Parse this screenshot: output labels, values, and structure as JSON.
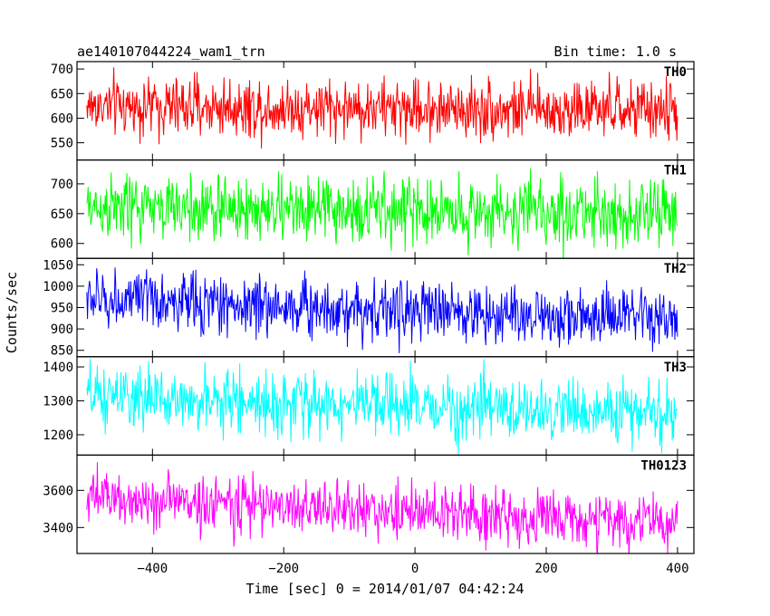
{
  "header": {
    "title": "ae140107044224_wam1_trn",
    "bin_time": "Bin time: 1.0 s"
  },
  "chart_data": {
    "type": "line",
    "title": "ae140107044224_wam1_trn",
    "subtitle": "Bin time: 1.0 s",
    "xlabel": "Time [sec] 0 = 2014/01/07 04:42:24",
    "ylabel": "Counts/sec",
    "xlim": [
      -515,
      425
    ],
    "x_range": [
      -500,
      400
    ],
    "x_ticks": [
      -400,
      -200,
      0,
      200,
      400
    ],
    "x_tick_labels": [
      "−400",
      "−200",
      "0",
      "200",
      "400"
    ],
    "grid": false,
    "panels": [
      {
        "name": "TH0",
        "color": "#ff0000",
        "ylim": [
          515,
          715
        ],
        "ticks": [
          550,
          600,
          650,
          700
        ],
        "tick_labels": [
          "550",
          "600",
          "650",
          "700"
        ],
        "mean_start": 625,
        "mean_end": 615,
        "spread": 30
      },
      {
        "name": "TH1",
        "color": "#00ff00",
        "ylim": [
          575,
          740
        ],
        "ticks": [
          600,
          650,
          700
        ],
        "tick_labels": [
          "600",
          "650",
          "700"
        ],
        "mean_start": 660,
        "mean_end": 650,
        "spread": 28
      },
      {
        "name": "TH2",
        "color": "#0000ff",
        "ylim": [
          835,
          1065
        ],
        "ticks": [
          850,
          900,
          950,
          1000,
          1050
        ],
        "tick_labels": [
          "850",
          "900",
          "950",
          "1000",
          "1050"
        ],
        "mean_start": 970,
        "mean_end": 920,
        "spread": 35
      },
      {
        "name": "TH3",
        "color": "#00ffff",
        "ylim": [
          1140,
          1430
        ],
        "ticks": [
          1200,
          1300,
          1400
        ],
        "tick_labels": [
          "1200",
          "1300",
          "1400"
        ],
        "mean_start": 1310,
        "mean_end": 1260,
        "spread": 45
      },
      {
        "name": "TH0123",
        "color": "#ff00ff",
        "ylim": [
          3260,
          3790
        ],
        "ticks": [
          3400,
          3600
        ],
        "tick_labels": [
          "3400",
          "3600"
        ],
        "mean_start": 3560,
        "mean_end": 3420,
        "spread": 75
      }
    ]
  }
}
